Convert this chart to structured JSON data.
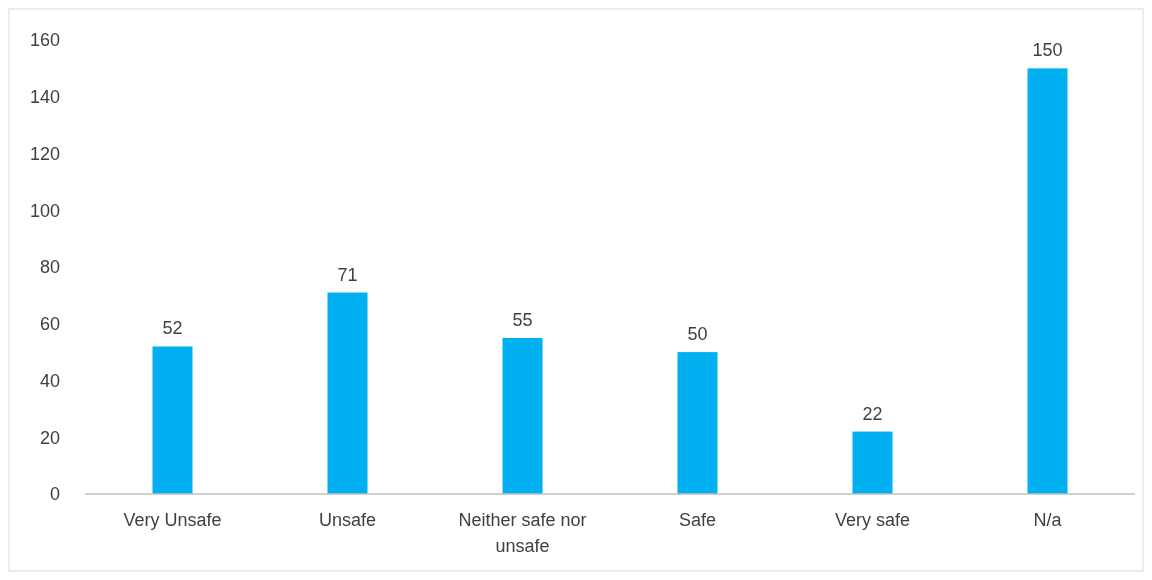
{
  "chart_data": {
    "type": "bar",
    "categories": [
      "Very Unsafe",
      "Unsafe",
      "Neither safe nor unsafe",
      "Safe",
      "Very safe",
      "N/a"
    ],
    "values": [
      52,
      71,
      55,
      50,
      22,
      150
    ],
    "color": "#00b0f0",
    "ylim": [
      0,
      160
    ],
    "yticks": [
      0,
      20,
      40,
      60,
      80,
      100,
      120,
      140,
      160
    ],
    "data_labels": true,
    "grid": false
  }
}
